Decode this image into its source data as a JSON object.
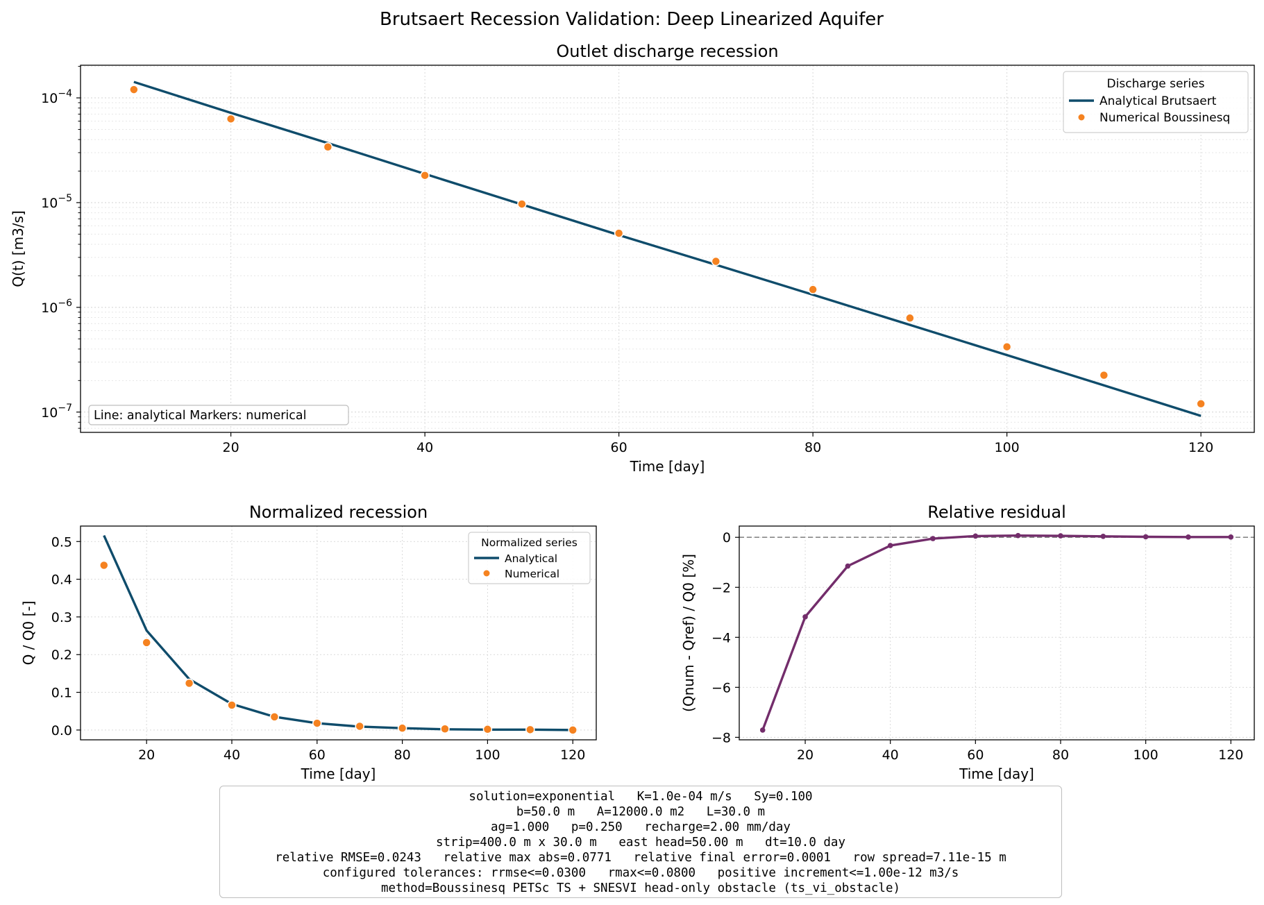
{
  "figure_title": "Brutsaert Recession Validation: Deep Linearized Aquifer",
  "colors": {
    "analytical": "#0f4c6b",
    "numerical": "#f58220",
    "residual": "#732d6b",
    "zero_line": "#888888"
  },
  "chart_data": [
    {
      "id": "discharge",
      "type": "line",
      "title": "Outlet discharge recession",
      "xlabel": "Time [day]",
      "ylabel": "Q(t) [m3/s]",
      "yscale": "log",
      "xlim": [
        4.5,
        125.5
      ],
      "ylim": [
        6.4e-08,
        0.000205
      ],
      "xticks": [
        20,
        40,
        60,
        80,
        100,
        120
      ],
      "yticks": [
        {
          "value": 0.0001,
          "mant": "10",
          "exp": "−4"
        },
        {
          "value": 1e-05,
          "mant": "10",
          "exp": "−5"
        },
        {
          "value": 1e-06,
          "mant": "10",
          "exp": "−6"
        },
        {
          "value": 1e-07,
          "mant": "10",
          "exp": "−7"
        }
      ],
      "grid": true,
      "legend": {
        "title": "Discharge series",
        "position": "top-right"
      },
      "annotation": "Line: analytical   Markers: numerical",
      "series": [
        {
          "name": "Analytical Brutsaert",
          "kind": "line",
          "x": [
            10,
            20,
            30,
            40,
            50,
            60,
            70,
            80,
            90,
            100,
            110,
            120
          ],
          "y": [
            0.000142,
            7.2e-05,
            3.7e-05,
            1.88e-05,
            9.6e-06,
            4.9e-06,
            2.55e-06,
            1.32e-06,
            6.8e-07,
            3.5e-07,
            1.8e-07,
            9.2e-08
          ]
        },
        {
          "name": "Numerical Boussinesq",
          "kind": "scatter",
          "x": [
            10,
            20,
            30,
            40,
            50,
            60,
            70,
            80,
            90,
            100,
            110,
            120
          ],
          "y": [
            0.00012,
            6.3e-05,
            3.4e-05,
            1.82e-05,
            9.7e-06,
            5.1e-06,
            2.75e-06,
            1.48e-06,
            7.9e-07,
            4.2e-07,
            2.25e-07,
            1.2e-07
          ]
        }
      ]
    },
    {
      "id": "normalized",
      "type": "line",
      "title": "Normalized recession",
      "xlabel": "Time [day]",
      "ylabel": "Q / Q0 [-]",
      "xlim": [
        4.5,
        125.5
      ],
      "ylim": [
        -0.026,
        0.541
      ],
      "xticks": [
        20,
        40,
        60,
        80,
        100,
        120
      ],
      "yticks": [
        "0.0",
        "0.1",
        "0.2",
        "0.3",
        "0.4",
        "0.5"
      ],
      "grid": true,
      "legend": {
        "title": "Normalized series",
        "position": "top-right"
      },
      "series": [
        {
          "name": "Analytical",
          "kind": "line",
          "x": [
            10,
            20,
            30,
            40,
            50,
            60,
            70,
            80,
            90,
            100,
            110,
            120
          ],
          "y": [
            0.516,
            0.264,
            0.135,
            0.069,
            0.035,
            0.018,
            0.009,
            0.005,
            0.002,
            0.001,
            0.001,
            0.0
          ]
        },
        {
          "name": "Numerical",
          "kind": "scatter",
          "x": [
            10,
            20,
            30,
            40,
            50,
            60,
            70,
            80,
            90,
            100,
            110,
            120
          ],
          "y": [
            0.437,
            0.232,
            0.124,
            0.066,
            0.035,
            0.018,
            0.01,
            0.005,
            0.003,
            0.002,
            0.001,
            0.0
          ]
        }
      ]
    },
    {
      "id": "residual",
      "type": "line",
      "title": "Relative residual",
      "xlabel": "Time [day]",
      "ylabel": "(Qnum - Qref) / Q0 [%]",
      "xlim": [
        4.5,
        125.5
      ],
      "ylim": [
        -8.1,
        0.45
      ],
      "xticks": [
        20,
        40,
        60,
        80,
        100,
        120
      ],
      "yticks": [
        "−8",
        "−6",
        "−4",
        "−2",
        "0"
      ],
      "ytick_values": [
        -8,
        -6,
        -4,
        -2,
        0
      ],
      "grid": true,
      "reference_line": 0,
      "series": [
        {
          "name": "",
          "kind": "line+markers",
          "x": [
            10,
            20,
            30,
            40,
            50,
            60,
            70,
            80,
            90,
            100,
            110,
            120
          ],
          "y": [
            -7.71,
            -3.18,
            -1.15,
            -0.33,
            -0.05,
            0.05,
            0.07,
            0.06,
            0.04,
            0.02,
            0.01,
            0.01
          ]
        }
      ]
    }
  ],
  "info_lines": [
    "solution=exponential   K=1.0e-04 m/s   Sy=0.100",
    "b=50.0 m   A=12000.0 m2   L=30.0 m",
    "ag=1.000   p=0.250   recharge=2.00 mm/day",
    "strip=400.0 m x 30.0 m   east head=50.00 m   dt=10.0 day",
    "relative RMSE=0.0243   relative max abs=0.0771   relative final error=0.0001   row spread=7.11e-15 m",
    "configured tolerances: rrmse<=0.0300   rmax<=0.0800   positive increment<=1.00e-12 m3/s",
    "method=Boussinesq PETSc TS + SNESVI head-only obstacle (ts_vi_obstacle)"
  ]
}
